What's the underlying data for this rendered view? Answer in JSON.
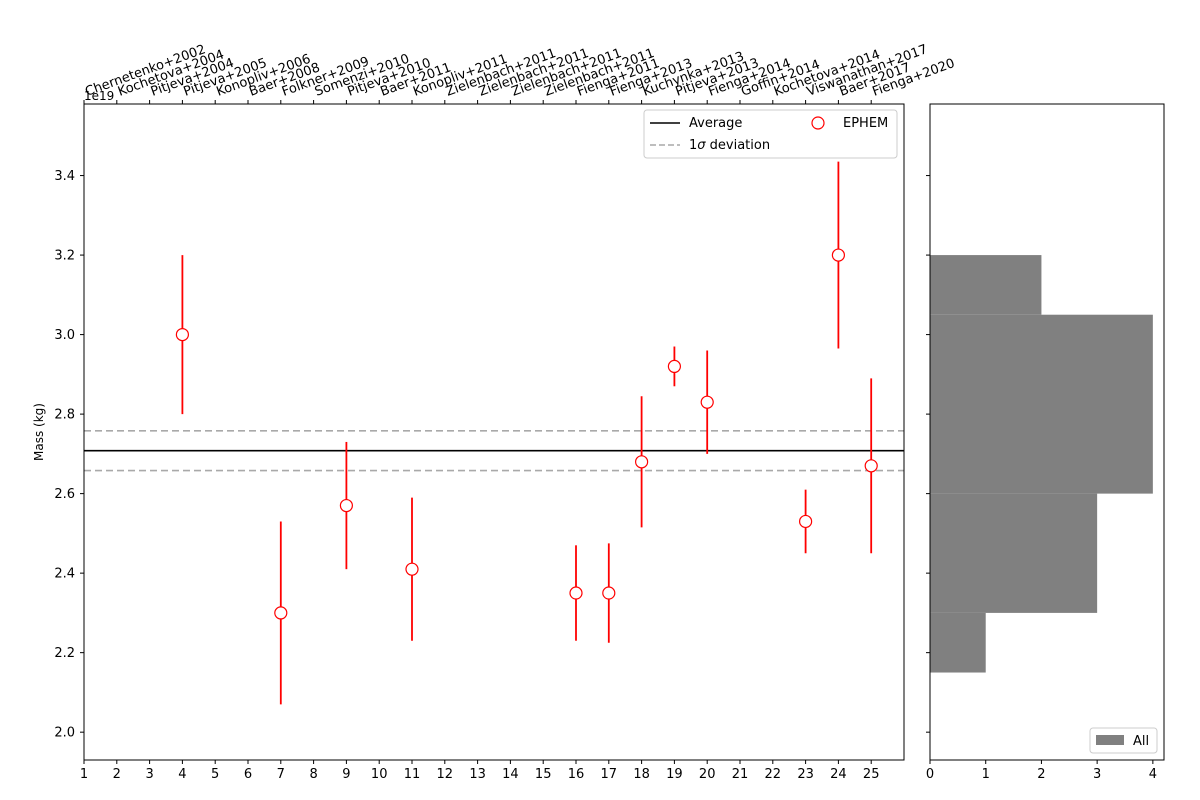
{
  "chart_data": [
    {
      "type": "scatter",
      "ylabel": "Mass (kg)",
      "y_offset_label": "1e19",
      "y_scale": 1e+19,
      "xlim": [
        1,
        26
      ],
      "ylim": [
        1.93,
        3.58
      ],
      "xticks": [
        1,
        2,
        3,
        4,
        5,
        6,
        7,
        8,
        9,
        10,
        11,
        12,
        13,
        14,
        15,
        16,
        17,
        18,
        19,
        20,
        21,
        22,
        23,
        24,
        25
      ],
      "yticks": [
        2.0,
        2.2,
        2.4,
        2.6,
        2.8,
        3.0,
        3.2,
        3.4
      ],
      "ytick_labels": [
        "2.0",
        "2.2",
        "2.4",
        "2.6",
        "2.8",
        "3.0",
        "3.2",
        "3.4"
      ],
      "top_xtick_labels": [
        "Chernetenko+2002",
        "Kochetova+2004",
        "Pitjeva+2004",
        "Pitjeva+2005",
        "Konopliv+2006",
        "Baer+2008",
        "Folkner+2009",
        "Somenzi+2010",
        "Pitjeva+2010",
        "Baer+2011",
        "Konopliv+2011",
        "Zielenbach+2011",
        "Zielenbach+2011",
        "Zielenbach+2011",
        "Zielenbach+2011",
        "Fienga+2011",
        "Fienga+2013",
        "Kuchynka+2013",
        "Pitjeva+2013",
        "Fienga+2014",
        "Goffin+2014",
        "Kochetova+2014",
        "Viswanathan+2017",
        "Baer+2017",
        "Fienga+2020"
      ],
      "series": [
        {
          "name": "EPHEM",
          "color": "#ff0000",
          "marker": "open-circle",
          "points": [
            {
              "x": 4,
              "y": 3.0,
              "err": 0.2
            },
            {
              "x": 7,
              "y": 2.3,
              "err": 0.23
            },
            {
              "x": 9,
              "y": 2.57,
              "err": 0.16
            },
            {
              "x": 11,
              "y": 2.41,
              "err": 0.18
            },
            {
              "x": 16,
              "y": 2.35,
              "err": 0.12
            },
            {
              "x": 17,
              "y": 2.35,
              "err": 0.125
            },
            {
              "x": 18,
              "y": 2.68,
              "err": 0.165
            },
            {
              "x": 19,
              "y": 2.92,
              "err": 0.05
            },
            {
              "x": 20,
              "y": 2.83,
              "err": 0.13
            },
            {
              "x": 23,
              "y": 2.53,
              "err": 0.08
            },
            {
              "x": 24,
              "y": 3.2,
              "err": 0.235
            },
            {
              "x": 25,
              "y": 2.67,
              "err": 0.22
            }
          ]
        }
      ],
      "average": 2.708,
      "sigma_lower": 2.658,
      "sigma_upper": 2.758,
      "legend": {
        "placement": "top-right",
        "items": [
          {
            "label": "Average",
            "style": "solid",
            "color": "#000000"
          },
          {
            "label_prefix": "1",
            "label_symbol": "σ",
            "label_suffix": " deviation",
            "style": "dashed",
            "color": "#a9a9a9"
          },
          {
            "label": "EPHEM",
            "style": "marker",
            "color": "#ff0000"
          }
        ]
      },
      "grid": false
    },
    {
      "type": "bar",
      "orientation": "horizontal",
      "name": "All",
      "color": "#808080",
      "xlim": [
        0,
        4.2
      ],
      "xticks": [
        0,
        1,
        2,
        3,
        4
      ],
      "bins": [
        {
          "from": 2.15,
          "to": 2.3,
          "count": 1
        },
        {
          "from": 2.3,
          "to": 2.6,
          "count": 3
        },
        {
          "from": 2.6,
          "to": 3.05,
          "count": 4
        },
        {
          "from": 3.05,
          "to": 3.2,
          "count": 2
        }
      ],
      "legend": {
        "placement": "bottom-right",
        "items": [
          {
            "label": "All"
          }
        ]
      }
    }
  ]
}
